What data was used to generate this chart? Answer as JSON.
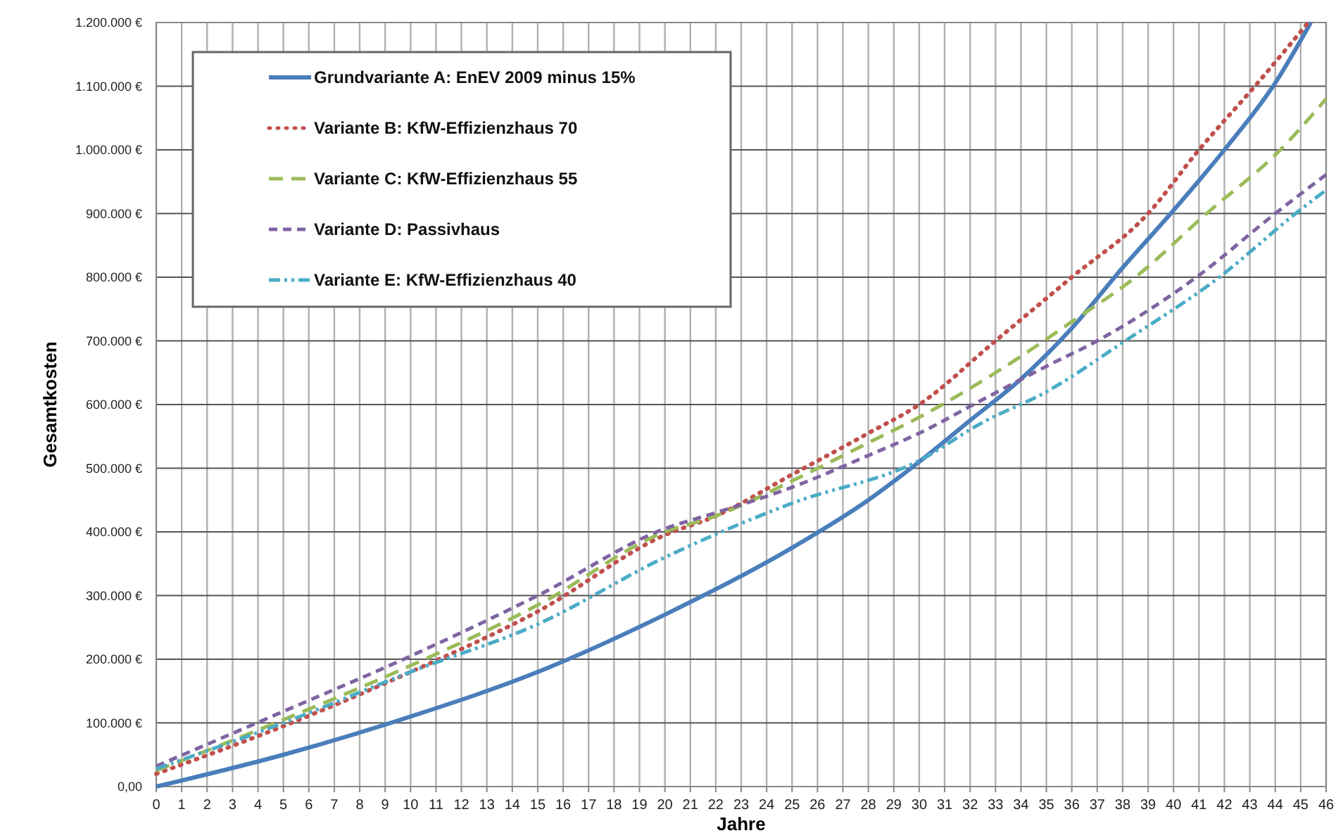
{
  "chart_data": {
    "type": "line",
    "xlabel": "Jahre",
    "ylabel": "Gesamtkosten",
    "xlim": [
      0,
      46
    ],
    "xticks": [
      0,
      1,
      2,
      3,
      4,
      5,
      6,
      7,
      8,
      9,
      10,
      11,
      12,
      13,
      14,
      15,
      16,
      17,
      18,
      19,
      20,
      21,
      22,
      23,
      24,
      25,
      26,
      27,
      28,
      29,
      30,
      31,
      32,
      33,
      34,
      35,
      36,
      37,
      38,
      39,
      40,
      41,
      42,
      43,
      44,
      45,
      46
    ],
    "ylim": [
      0,
      1200000
    ],
    "yticks": [
      {
        "value": 0,
        "label": "0,00"
      },
      {
        "value": 100000,
        "label": "100.000 €"
      },
      {
        "value": 200000,
        "label": "200.000 €"
      },
      {
        "value": 300000,
        "label": "300.000 €"
      },
      {
        "value": 400000,
        "label": "400.000 €"
      },
      {
        "value": 500000,
        "label": "500.000 €"
      },
      {
        "value": 600000,
        "label": "600.000 €"
      },
      {
        "value": 700000,
        "label": "700.000 €"
      },
      {
        "value": 800000,
        "label": "800.000 €"
      },
      {
        "value": 900000,
        "label": "900.000 €"
      },
      {
        "value": 1000000,
        "label": "1.000.000 €"
      },
      {
        "value": 1100000,
        "label": "1.100.000 €"
      },
      {
        "value": 1200000,
        "label": "1.200.000 €"
      }
    ],
    "grid": true,
    "legend": "top left",
    "series": [
      {
        "name": "Grundvariante A: EnEV 2009 minus 15%",
        "color": "#4a7ebb",
        "line_style": "solid",
        "x": [
          0,
          5,
          10,
          15,
          20,
          25,
          28,
          30,
          32,
          34,
          36,
          38,
          40,
          42,
          44,
          45.4
        ],
        "values": [
          0,
          50000,
          110000,
          180000,
          270000,
          375000,
          450000,
          510000,
          575000,
          640000,
          720000,
          815000,
          905000,
          1000000,
          1105000,
          1200000
        ]
      },
      {
        "name": "Variante B: KfW-Effizienzhaus 70",
        "color": "#c0504d",
        "line_style": "dotted",
        "x": [
          0,
          5,
          10,
          15,
          20,
          22,
          25,
          28,
          30,
          33,
          36,
          39,
          41,
          43.2,
          45.3
        ],
        "values": [
          20000,
          95000,
          180000,
          275000,
          395000,
          425000,
          490000,
          555000,
          600000,
          700000,
          800000,
          900000,
          1000000,
          1100000,
          1200000
        ]
      },
      {
        "name": "Variante C: KfW-Effizienzhaus 55",
        "color": "#9bbb59",
        "line_style": "dashed",
        "x": [
          0,
          5,
          10,
          15,
          20,
          22,
          25,
          28,
          30,
          33,
          36,
          38.5,
          41.3,
          44.2,
          46
        ],
        "values": [
          25000,
          105000,
          190000,
          285000,
          400000,
          425000,
          480000,
          540000,
          580000,
          650000,
          730000,
          800000,
          900000,
          1000000,
          1080000
        ]
      },
      {
        "name": "Variante D: Passivhaus",
        "color": "#8064a2",
        "line_style": "dashed",
        "x": [
          0,
          5,
          10,
          15,
          20,
          22,
          25,
          28,
          30,
          32.6,
          35,
          37,
          40.9,
          44,
          46
        ],
        "values": [
          32000,
          118000,
          205000,
          300000,
          405000,
          430000,
          470000,
          520000,
          555000,
          610000,
          660000,
          700000,
          800000,
          900000,
          961000
        ]
      },
      {
        "name": "Variante E: KfW-Effizienzhaus 40",
        "color": "#4bacc6",
        "line_style": "dashed",
        "x": [
          0,
          5,
          10,
          15,
          20,
          25,
          30,
          32.5,
          35,
          38.1,
          41.8,
          44.8,
          46
        ],
        "values": [
          28000,
          100000,
          180000,
          255000,
          360000,
          445000,
          512000,
          572000,
          620000,
          700000,
          800000,
          900000,
          937000
        ]
      }
    ]
  }
}
